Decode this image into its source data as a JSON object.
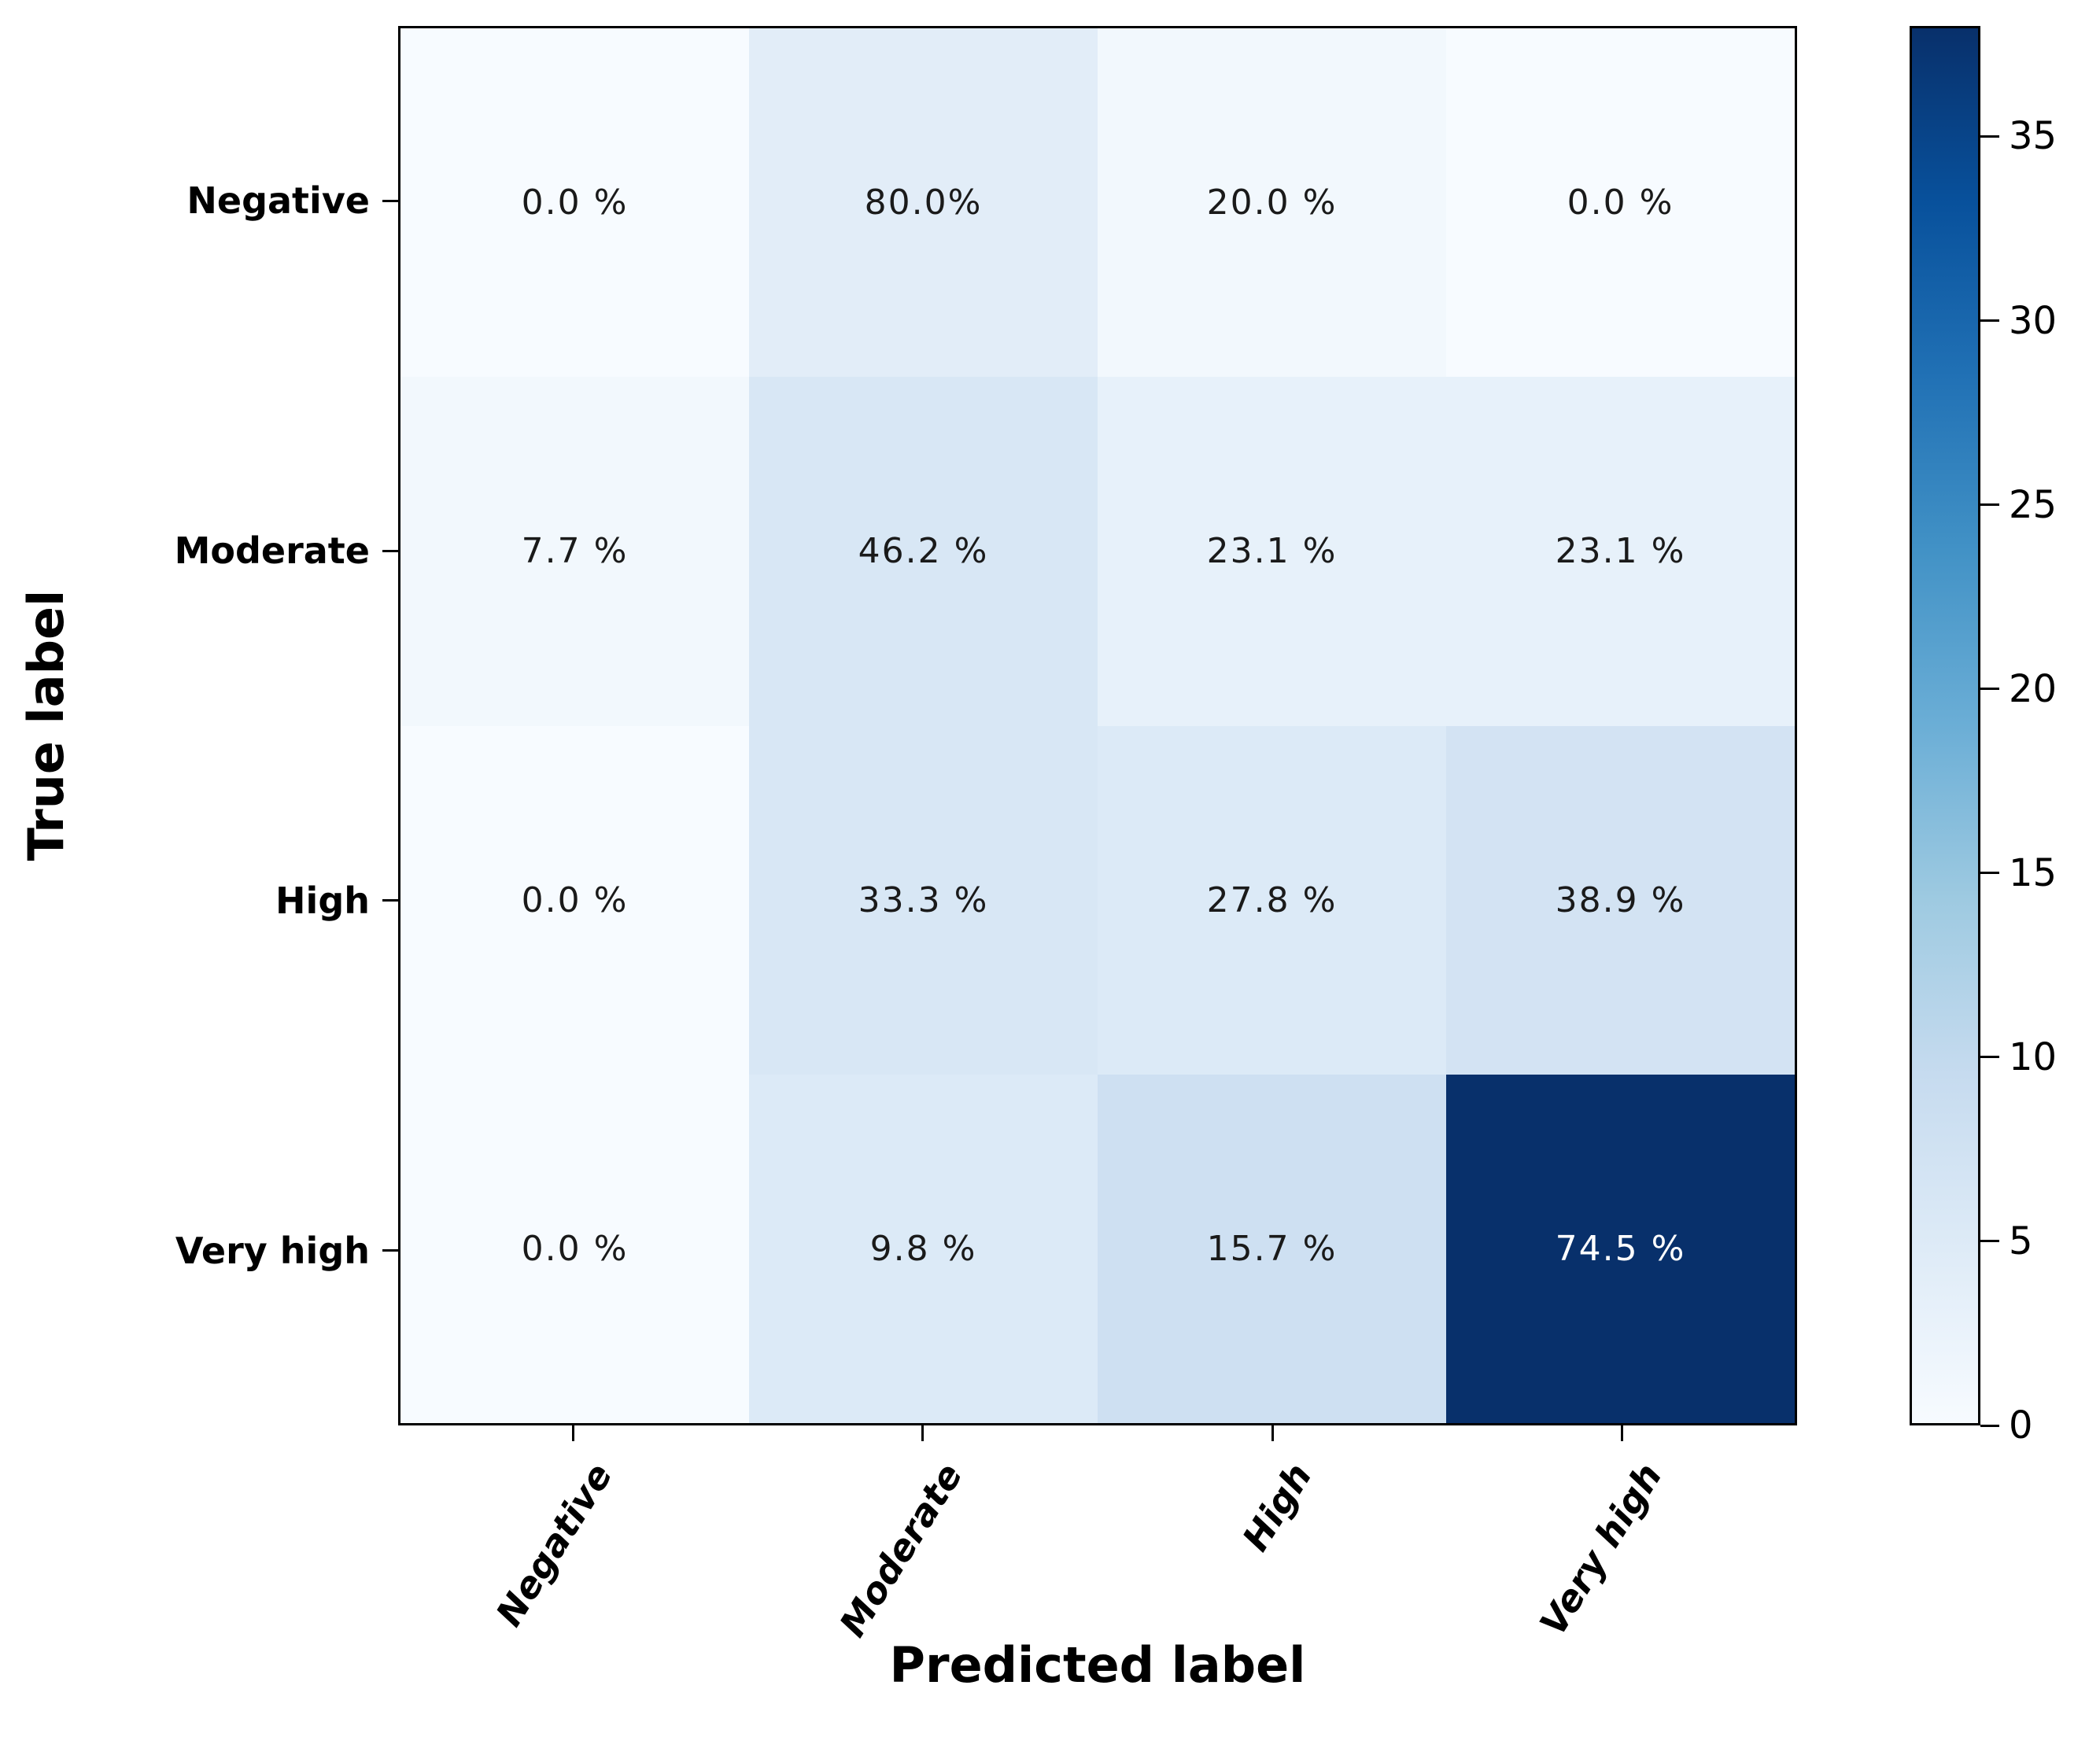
{
  "chart_data": {
    "type": "heatmap",
    "title": "",
    "xlabel": "Predicted label",
    "ylabel": "True label",
    "x_categories": [
      "Negative",
      "Moderate",
      "High",
      "Very high"
    ],
    "y_categories": [
      "Negative",
      "Moderate",
      "High",
      "Very high"
    ],
    "cell_labels": [
      [
        "0.0 %",
        "80.0%",
        "20.0 %",
        "0.0 %"
      ],
      [
        "7.7 %",
        "46.2 %",
        "23.1 %",
        "23.1 %"
      ],
      [
        "0.0 %",
        "33.3 %",
        "27.8 %",
        "38.9 %"
      ],
      [
        "0.0 %",
        "9.8 %",
        "15.7 %",
        "74.5 %"
      ]
    ],
    "color_values": [
      [
        0,
        4,
        1,
        0
      ],
      [
        1,
        6,
        3,
        3
      ],
      [
        0,
        6,
        5,
        7
      ],
      [
        0,
        5,
        8,
        38
      ]
    ],
    "cell_colors": [
      [
        "#f7fbff",
        "#e2edf8",
        "#f2f8fd",
        "#f7fbff"
      ],
      [
        "#f2f8fd",
        "#d8e7f5",
        "#e7f1fa",
        "#e7f1fa"
      ],
      [
        "#f7fbff",
        "#d8e7f5",
        "#dceaf7",
        "#d3e3f3"
      ],
      [
        "#f7fbff",
        "#dceaf7",
        "#cee0f2",
        "#08306b"
      ]
    ],
    "cell_text_colors": [
      [
        "#1a1a1a",
        "#1a1a1a",
        "#1a1a1a",
        "#1a1a1a"
      ],
      [
        "#1a1a1a",
        "#1a1a1a",
        "#1a1a1a",
        "#1a1a1a"
      ],
      [
        "#1a1a1a",
        "#1a1a1a",
        "#1a1a1a",
        "#1a1a1a"
      ],
      [
        "#1a1a1a",
        "#1a1a1a",
        "#1a1a1a",
        "#ffffff"
      ]
    ],
    "colormap": "Blues",
    "colorbar": {
      "ticks": [
        0,
        5,
        10,
        15,
        20,
        25,
        30,
        35
      ],
      "vmin": 0,
      "vmax": 38
    },
    "grid": false,
    "legend_position": "right-colorbar"
  },
  "colors": {
    "heatmap_min": "#f7fbff",
    "heatmap_max": "#08306b",
    "axis": "#000000",
    "value_text": "#1a1a1a",
    "value_text_on_dark": "#ffffff"
  }
}
